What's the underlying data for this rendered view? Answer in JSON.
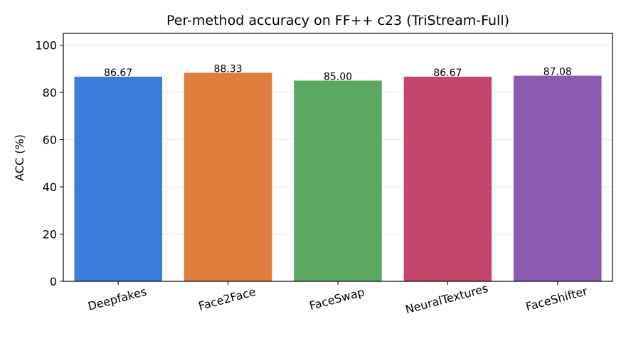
{
  "chart_data": {
    "type": "bar",
    "title": "Per-method accuracy on FF++ c23 (TriStream-Full)",
    "xlabel": "",
    "ylabel": "ACC (%)",
    "categories": [
      "Deepfakes",
      "Face2Face",
      "FaceSwap",
      "NeuralTextures",
      "FaceShifter"
    ],
    "values": [
      86.67,
      88.33,
      85.0,
      86.67,
      87.08
    ],
    "value_labels": [
      "86.67",
      "88.33",
      "85.00",
      "86.67",
      "87.08"
    ],
    "colors": [
      "#3a7dd8",
      "#e07d3c",
      "#5aa862",
      "#c3476a",
      "#8b5bb0"
    ],
    "ylim": [
      0,
      105
    ],
    "yticks": [
      0,
      20,
      40,
      60,
      80,
      100
    ],
    "grid": true,
    "x_tick_rotation": "15deg"
  }
}
